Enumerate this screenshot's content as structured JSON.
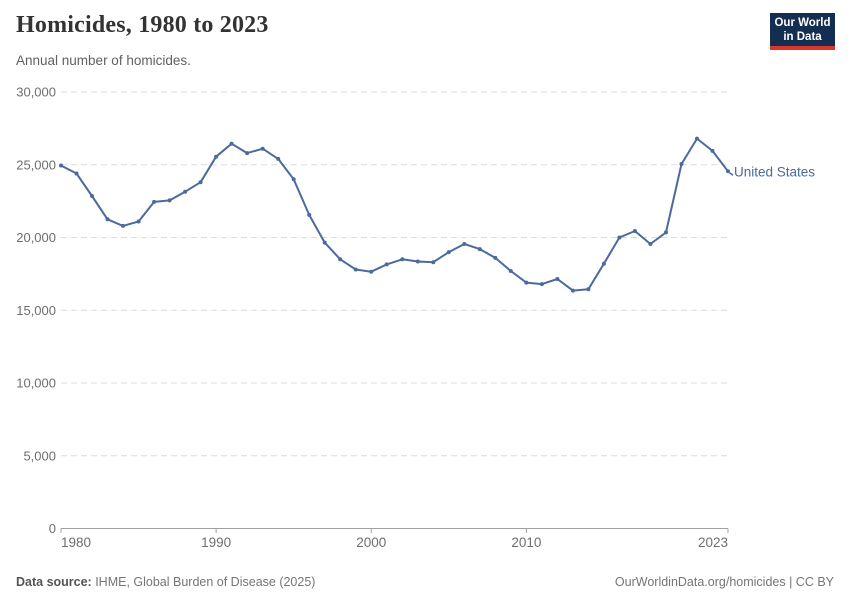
{
  "header": {
    "title": "Homicides, 1980 to 2023",
    "subtitle": "Annual number of homicides.",
    "logo": {
      "line1": "Our World",
      "line2": "in Data",
      "bg_color": "#142e52",
      "accent_color": "#dc352b"
    }
  },
  "chart_data": {
    "type": "line",
    "title": "Homicides, 1980 to 2023",
    "subtitle": "Annual number of homicides.",
    "xlabel": "",
    "ylabel": "",
    "xlim": [
      1980,
      2023
    ],
    "ylim": [
      0,
      30000
    ],
    "x_ticks": [
      1980,
      1990,
      2000,
      2010,
      2023
    ],
    "y_ticks": [
      0,
      5000,
      10000,
      15000,
      20000,
      25000,
      30000
    ],
    "grid": "horizontal-dashed",
    "legend_position": "end-of-line-label",
    "series": [
      {
        "name": "United States",
        "color": "#4C6A9C",
        "x": [
          1980,
          1981,
          1982,
          1983,
          1984,
          1985,
          1986,
          1987,
          1988,
          1989,
          1990,
          1991,
          1992,
          1993,
          1994,
          1995,
          1996,
          1997,
          1998,
          1999,
          2000,
          2001,
          2002,
          2003,
          2004,
          2005,
          2006,
          2007,
          2008,
          2009,
          2010,
          2011,
          2012,
          2013,
          2014,
          2015,
          2016,
          2017,
          2018,
          2019,
          2020,
          2021,
          2022,
          2023
        ],
        "values": [
          24950,
          24400,
          22850,
          21250,
          20800,
          21100,
          22450,
          22550,
          23150,
          23800,
          25550,
          26450,
          25800,
          26100,
          25400,
          24000,
          21550,
          19650,
          18500,
          17800,
          17650,
          18150,
          18500,
          18350,
          18300,
          19000,
          19550,
          19200,
          18600,
          17700,
          16900,
          16800,
          17150,
          16350,
          16450,
          18200,
          20000,
          20450,
          19550,
          20350,
          25050,
          26800,
          25950,
          24550
        ]
      }
    ],
    "axis_color": "#a0a0a0",
    "gridline_color": "#dcdcdc",
    "tick_label_color": "#6e6e6e"
  },
  "footer": {
    "source_label": "Data source:",
    "source_text": " IHME, Global Burden of Disease (2025)",
    "link_text": "OurWorldinData.org/homicides | CC BY"
  }
}
